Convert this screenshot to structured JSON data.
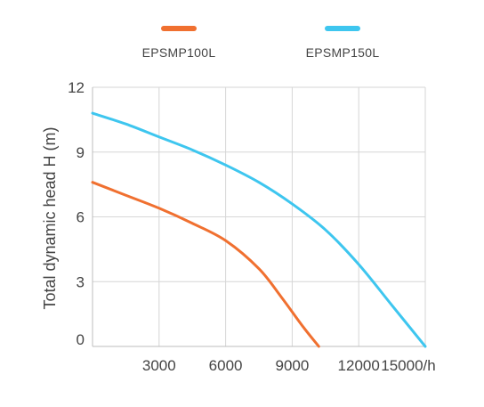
{
  "chart_data": {
    "type": "line",
    "title": "",
    "xlabel": "",
    "x_unit_suffix": "/h",
    "ylabel": "Total dynamic head H (m)",
    "xlim": [
      0,
      15000
    ],
    "ylim": [
      0,
      12
    ],
    "x_ticks": [
      3000,
      6000,
      9000,
      12000,
      15000
    ],
    "y_ticks": [
      0,
      3,
      6,
      9,
      12
    ],
    "grid": true,
    "legend_position": "top",
    "series": [
      {
        "name": "EPSMP100L",
        "color": "#f07030",
        "x": [
          0,
          1500,
          3000,
          4500,
          6000,
          7500,
          8500,
          9500,
          10200
        ],
        "y": [
          7.6,
          7.0,
          6.4,
          5.7,
          4.9,
          3.6,
          2.3,
          0.9,
          0
        ]
      },
      {
        "name": "EPSMP150L",
        "color": "#3ec6ef",
        "x": [
          0,
          1500,
          3000,
          4500,
          6000,
          7500,
          9000,
          10500,
          12000,
          13500,
          15000
        ],
        "y": [
          10.8,
          10.3,
          9.7,
          9.1,
          8.4,
          7.6,
          6.6,
          5.4,
          3.8,
          1.9,
          0
        ]
      }
    ]
  }
}
